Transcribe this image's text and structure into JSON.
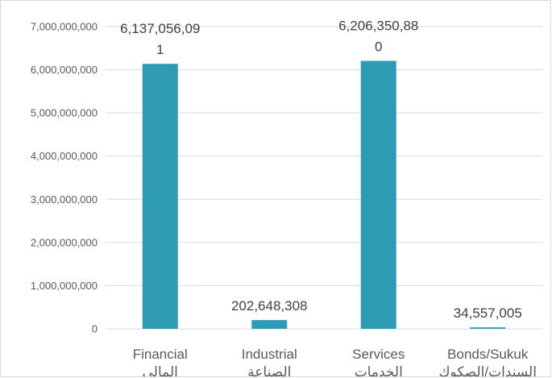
{
  "chart_data": {
    "type": "bar",
    "categories": [
      [
        "Financial",
        "المالي"
      ],
      [
        "Industrial",
        "الصناعة"
      ],
      [
        "Services",
        "الخدمات"
      ],
      [
        "Bonds/Sukuk",
        "السندات/الصكوك"
      ]
    ],
    "values": [
      6137056091,
      202648308,
      6206350880,
      34557005
    ],
    "data_labels": [
      [
        "6,137,056,09",
        "1"
      ],
      [
        "202,648,308"
      ],
      [
        "6,206,350,88",
        "0"
      ],
      [
        "34,557,005"
      ]
    ],
    "ylim": [
      0,
      7000000000
    ],
    "yticks": [
      "0",
      "1,000,000,000",
      "2,000,000,000",
      "3,000,000,000",
      "4,000,000,000",
      "5,000,000,000",
      "6,000,000,000",
      "7,000,000,000"
    ],
    "bar_color": "#2e9bb5",
    "grid": true,
    "title": "",
    "xlabel": "",
    "ylabel": ""
  }
}
